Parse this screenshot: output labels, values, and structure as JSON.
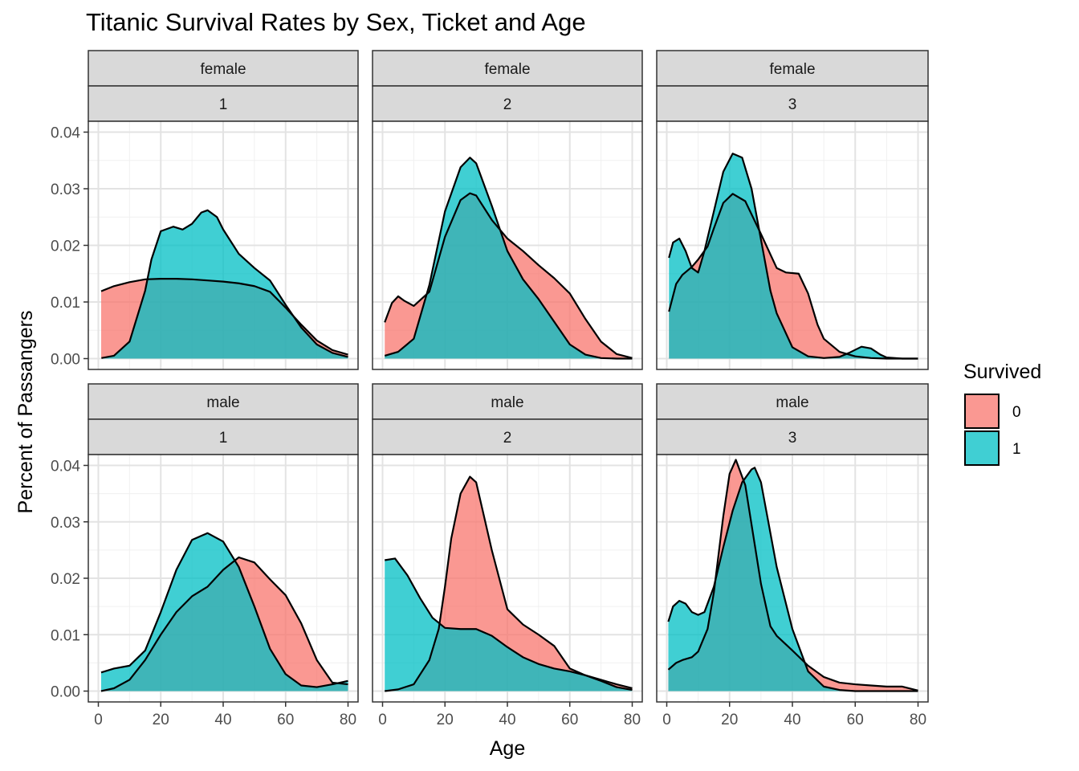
{
  "chart_data": {
    "type": "area",
    "title": "Titanic Survival Rates by Sex, Ticket and Age",
    "xlabel": "Age",
    "ylabel": "Percent of Passangers",
    "xlim": [
      0,
      80
    ],
    "ylim": [
      0,
      0.04
    ],
    "x_ticks": [
      "0",
      "20",
      "40",
      "60",
      "80"
    ],
    "y_ticks": [
      "0.00",
      "0.01",
      "0.02",
      "0.03",
      "0.04"
    ],
    "grid": true,
    "legend": {
      "title": "Survived",
      "position": "right",
      "entries": [
        {
          "label": "0",
          "color": "#F8766D"
        },
        {
          "label": "1",
          "color": "#00BFC4"
        }
      ]
    },
    "fill_opacity": 0.75,
    "panels": [
      {
        "sex": "female",
        "ticket": "1",
        "series": [
          {
            "name": "0",
            "x": [
              0.9,
              5,
              10,
              15,
              20,
              25,
              30,
              35,
              40,
              45,
              50,
              55,
              60,
              65,
              70,
              75,
              80
            ],
            "y": [
              0.0119,
              0.0128,
              0.0135,
              0.014,
              0.0141,
              0.0141,
              0.014,
              0.0138,
              0.0136,
              0.0133,
              0.0128,
              0.0118,
              0.009,
              0.006,
              0.0032,
              0.0015,
              0.0007
            ]
          },
          {
            "name": "1",
            "x": [
              1,
              5,
              10,
              15,
              17,
              20,
              24,
              27,
              30,
              33,
              35,
              38,
              40,
              45,
              50,
              55,
              60,
              65,
              70,
              75,
              80
            ],
            "y": [
              0.0001,
              0.0005,
              0.003,
              0.012,
              0.0175,
              0.0225,
              0.0233,
              0.0228,
              0.0238,
              0.0258,
              0.0262,
              0.025,
              0.0228,
              0.0185,
              0.016,
              0.0138,
              0.0095,
              0.0055,
              0.0025,
              0.001,
              0.0003
            ]
          }
        ]
      },
      {
        "sex": "female",
        "ticket": "2",
        "series": [
          {
            "name": "0",
            "x": [
              0.7,
              3,
              5,
              7,
              10,
              15,
              20,
              25,
              28,
              30,
              35,
              40,
              45,
              50,
              55,
              60,
              65,
              70,
              75,
              80
            ],
            "y": [
              0.0064,
              0.0098,
              0.011,
              0.0102,
              0.0093,
              0.0118,
              0.0215,
              0.028,
              0.0292,
              0.0288,
              0.0245,
              0.0212,
              0.019,
              0.0165,
              0.0142,
              0.0115,
              0.007,
              0.003,
              0.0008,
              0.0001
            ]
          },
          {
            "name": "1",
            "x": [
              0.7,
              5,
              10,
              15,
              20,
              25,
              28,
              30,
              35,
              40,
              45,
              50,
              55,
              60,
              65,
              70,
              75,
              80
            ],
            "y": [
              0.0005,
              0.0012,
              0.0035,
              0.013,
              0.026,
              0.0338,
              0.0355,
              0.0345,
              0.027,
              0.019,
              0.014,
              0.0105,
              0.0065,
              0.0025,
              0.0007,
              0.0001,
              0.0,
              0.0
            ]
          }
        ]
      },
      {
        "sex": "female",
        "ticket": "3",
        "series": [
          {
            "name": "0",
            "x": [
              0.7,
              3,
              5,
              8,
              10,
              13,
              15,
              18,
              21,
              25,
              30,
              35,
              38,
              42,
              45,
              48,
              50,
              55,
              60,
              65,
              70,
              75,
              80
            ],
            "y": [
              0.0083,
              0.0132,
              0.0148,
              0.0162,
              0.0175,
              0.0198,
              0.023,
              0.0275,
              0.0291,
              0.0278,
              0.022,
              0.016,
              0.0152,
              0.015,
              0.0115,
              0.006,
              0.0035,
              0.0012,
              0.0004,
              0.0001,
              0.0,
              0.0,
              0.0
            ]
          },
          {
            "name": "1",
            "x": [
              0.7,
              2,
              4,
              6,
              8,
              10,
              12,
              15,
              18,
              21,
              24,
              27,
              30,
              33,
              35,
              40,
              45,
              50,
              55,
              58,
              62,
              65,
              68,
              70,
              75,
              80
            ],
            "y": [
              0.0178,
              0.0205,
              0.0212,
              0.019,
              0.016,
              0.0152,
              0.019,
              0.026,
              0.033,
              0.0362,
              0.0355,
              0.03,
              0.021,
              0.012,
              0.008,
              0.002,
              0.0004,
              0.0001,
              0.0003,
              0.001,
              0.0021,
              0.0018,
              0.0007,
              0.0002,
              0.0,
              0.0
            ]
          }
        ]
      },
      {
        "sex": "male",
        "ticket": "1",
        "series": [
          {
            "name": "0",
            "x": [
              0.9,
              5,
              10,
              15,
              20,
              25,
              30,
              35,
              40,
              45,
              50,
              55,
              60,
              65,
              70,
              75,
              80
            ],
            "y": [
              0.0,
              0.0005,
              0.002,
              0.0055,
              0.01,
              0.014,
              0.0168,
              0.0185,
              0.0215,
              0.0237,
              0.0228,
              0.0198,
              0.017,
              0.012,
              0.0055,
              0.0015,
              0.0012
            ]
          },
          {
            "name": "1",
            "x": [
              0.9,
              5,
              10,
              15,
              20,
              25,
              30,
              35,
              40,
              45,
              50,
              55,
              60,
              65,
              70,
              75,
              80
            ],
            "y": [
              0.0033,
              0.004,
              0.0045,
              0.0072,
              0.014,
              0.0215,
              0.0268,
              0.028,
              0.0265,
              0.022,
              0.015,
              0.0075,
              0.003,
              0.001,
              0.0007,
              0.0012,
              0.0018
            ]
          }
        ]
      },
      {
        "sex": "male",
        "ticket": "2",
        "series": [
          {
            "name": "0",
            "x": [
              0.7,
              5,
              10,
              15,
              18,
              20,
              22,
              25,
              28,
              30,
              35,
              40,
              45,
              50,
              55,
              60,
              65,
              70,
              75,
              80
            ],
            "y": [
              0.0,
              0.0003,
              0.0012,
              0.0055,
              0.011,
              0.0185,
              0.027,
              0.035,
              0.038,
              0.037,
              0.025,
              0.0145,
              0.0118,
              0.01,
              0.008,
              0.004,
              0.0028,
              0.002,
              0.0012,
              0.0005
            ]
          },
          {
            "name": "1",
            "x": [
              0.7,
              4,
              8,
              12,
              16,
              20,
              25,
              30,
              35,
              40,
              45,
              50,
              55,
              60,
              65,
              70,
              75,
              80
            ],
            "y": [
              0.0232,
              0.0235,
              0.0205,
              0.0165,
              0.013,
              0.0112,
              0.011,
              0.011,
              0.0098,
              0.0078,
              0.006,
              0.0048,
              0.004,
              0.0035,
              0.0028,
              0.0018,
              0.0007,
              0.0002
            ]
          }
        ]
      },
      {
        "sex": "male",
        "ticket": "3",
        "series": [
          {
            "name": "0",
            "x": [
              0.5,
              3,
              5,
              8,
              10,
              13,
              15,
              18,
              20,
              22,
              25,
              28,
              30,
              33,
              35,
              40,
              45,
              50,
              55,
              60,
              65,
              70,
              75,
              80
            ],
            "y": [
              0.0038,
              0.005,
              0.0055,
              0.006,
              0.007,
              0.011,
              0.0175,
              0.031,
              0.0385,
              0.041,
              0.0365,
              0.026,
              0.019,
              0.0115,
              0.0098,
              0.0072,
              0.0045,
              0.0025,
              0.0015,
              0.0012,
              0.001,
              0.0008,
              0.0008,
              0.0001
            ]
          },
          {
            "name": "1",
            "x": [
              0.5,
              2,
              4,
              6,
              8,
              10,
              12,
              15,
              18,
              21,
              24,
              27,
              28,
              30,
              32,
              35,
              40,
              45,
              50,
              55,
              60,
              65,
              70,
              75,
              80
            ],
            "y": [
              0.0123,
              0.015,
              0.016,
              0.0155,
              0.014,
              0.0135,
              0.014,
              0.0185,
              0.0255,
              0.032,
              0.037,
              0.0393,
              0.0396,
              0.037,
              0.031,
              0.022,
              0.011,
              0.0035,
              0.0008,
              0.0002,
              0.0,
              0.0,
              0.0,
              0.0,
              0.0
            ]
          }
        ]
      }
    ]
  }
}
